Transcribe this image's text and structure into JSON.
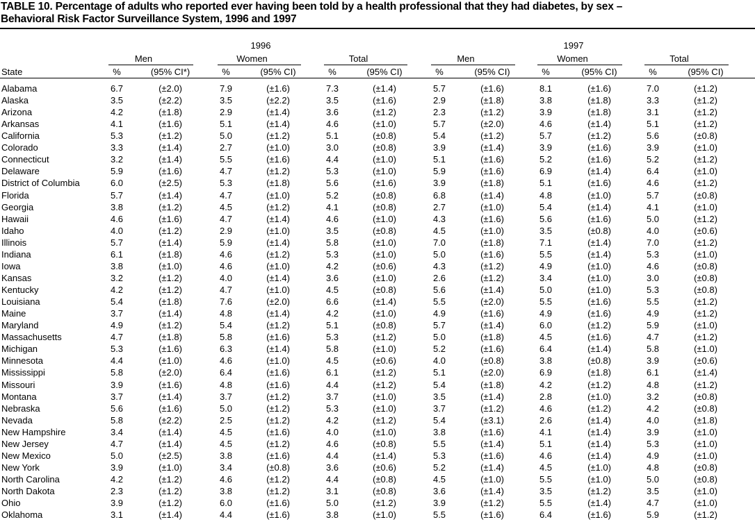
{
  "header": {
    "title": [
      "TABLE 10. Percentage of adults who reported ever having been told by a health professional that they had diabetes, by sex –",
      "Behavioral Risk Factor Surveillance System, 1996 and 1997"
    ]
  },
  "table": {
    "state_header": "State",
    "years": [
      {
        "label": "1996",
        "groups": [
          {
            "label": "Men",
            "cols": [
              "%",
              "(95% CI*)"
            ]
          },
          {
            "label": "Women",
            "cols": [
              "%",
              "(95% CI)"
            ]
          },
          {
            "label": "Total",
            "cols": [
              "%",
              "(95% CI)"
            ]
          }
        ]
      },
      {
        "label": "1997",
        "groups": [
          {
            "label": "Men",
            "cols": [
              "%",
              "(95% CI)"
            ]
          },
          {
            "label": "Women",
            "cols": [
              "%",
              "(95% CI)"
            ]
          },
          {
            "label": "Total",
            "cols": [
              "%",
              "(95% CI)"
            ]
          }
        ]
      }
    ],
    "rows": [
      [
        "Alabama",
        "6.7",
        "(±2.0)",
        "7.9",
        "(±1.6)",
        "7.3",
        "(±1.4)",
        "5.7",
        "(±1.6)",
        "8.1",
        "(±1.6)",
        "7.0",
        "(±1.2)"
      ],
      [
        "Alaska",
        "3.5",
        "(±2.2)",
        "3.5",
        "(±2.2)",
        "3.5",
        "(±1.6)",
        "2.9",
        "(±1.8)",
        "3.8",
        "(±1.8)",
        "3.3",
        "(±1.2)"
      ],
      [
        "Arizona",
        "4.2",
        "(±1.8)",
        "2.9",
        "(±1.4)",
        "3.6",
        "(±1.2)",
        "2.3",
        "(±1.2)",
        "3.9",
        "(±1.8)",
        "3.1",
        "(±1.2)"
      ],
      [
        "Arkansas",
        "4.1",
        "(±1.6)",
        "5.1",
        "(±1.4)",
        "4.6",
        "(±1.0)",
        "5.7",
        "(±2.0)",
        "4.6",
        "(±1.4)",
        "5.1",
        "(±1.2)"
      ],
      [
        "California",
        "5.3",
        "(±1.2)",
        "5.0",
        "(±1.2)",
        "5.1",
        "(±0.8)",
        "5.4",
        "(±1.2)",
        "5.7",
        "(±1.2)",
        "5.6",
        "(±0.8)"
      ],
      [
        "Colorado",
        "3.3",
        "(±1.4)",
        "2.7",
        "(±1.0)",
        "3.0",
        "(±0.8)",
        "3.9",
        "(±1.4)",
        "3.9",
        "(±1.6)",
        "3.9",
        "(±1.0)"
      ],
      [
        "Connecticut",
        "3.2",
        "(±1.4)",
        "5.5",
        "(±1.6)",
        "4.4",
        "(±1.0)",
        "5.1",
        "(±1.6)",
        "5.2",
        "(±1.6)",
        "5.2",
        "(±1.2)"
      ],
      [
        "Delaware",
        "5.9",
        "(±1.6)",
        "4.7",
        "(±1.2)",
        "5.3",
        "(±1.0)",
        "5.9",
        "(±1.6)",
        "6.9",
        "(±1.4)",
        "6.4",
        "(±1.0)"
      ],
      [
        "District of Columbia",
        "6.0",
        "(±2.5)",
        "5.3",
        "(±1.8)",
        "5.6",
        "(±1.6)",
        "3.9",
        "(±1.8)",
        "5.1",
        "(±1.6)",
        "4.6",
        "(±1.2)"
      ],
      [
        "Florida",
        "5.7",
        "(±1.4)",
        "4.7",
        "(±1.0)",
        "5.2",
        "(±0.8)",
        "6.8",
        "(±1.4)",
        "4.8",
        "(±1.0)",
        "5.7",
        "(±0.8)"
      ],
      [
        "Georgia",
        "3.8",
        "(±1.2)",
        "4.5",
        "(±1.2)",
        "4.1",
        "(±0.8)",
        "2.7",
        "(±1.0)",
        "5.4",
        "(±1.4)",
        "4.1",
        "(±1.0)"
      ],
      [
        "Hawaii",
        "4.6",
        "(±1.6)",
        "4.7",
        "(±1.4)",
        "4.6",
        "(±1.0)",
        "4.3",
        "(±1.6)",
        "5.6",
        "(±1.6)",
        "5.0",
        "(±1.2)"
      ],
      [
        "Idaho",
        "4.0",
        "(±1.2)",
        "2.9",
        "(±1.0)",
        "3.5",
        "(±0.8)",
        "4.5",
        "(±1.0)",
        "3.5",
        "(±0.8)",
        "4.0",
        "(±0.6)"
      ],
      [
        "Illinois",
        "5.7",
        "(±1.4)",
        "5.9",
        "(±1.4)",
        "5.8",
        "(±1.0)",
        "7.0",
        "(±1.8)",
        "7.1",
        "(±1.4)",
        "7.0",
        "(±1.2)"
      ],
      [
        "Indiana",
        "6.1",
        "(±1.8)",
        "4.6",
        "(±1.2)",
        "5.3",
        "(±1.0)",
        "5.0",
        "(±1.6)",
        "5.5",
        "(±1.4)",
        "5.3",
        "(±1.0)"
      ],
      [
        "Iowa",
        "3.8",
        "(±1.0)",
        "4.6",
        "(±1.0)",
        "4.2",
        "(±0.6)",
        "4.3",
        "(±1.2)",
        "4.9",
        "(±1.0)",
        "4.6",
        "(±0.8)"
      ],
      [
        "Kansas",
        "3.2",
        "(±1.2)",
        "4.0",
        "(±1.4)",
        "3.6",
        "(±1.0)",
        "2.6",
        "(±1.2)",
        "3.4",
        "(±1.0)",
        "3.0",
        "(±0.8)"
      ],
      [
        "Kentucky",
        "4.2",
        "(±1.2)",
        "4.7",
        "(±1.0)",
        "4.5",
        "(±0.8)",
        "5.6",
        "(±1.4)",
        "5.0",
        "(±1.0)",
        "5.3",
        "(±0.8)"
      ],
      [
        "Louisiana",
        "5.4",
        "(±1.8)",
        "7.6",
        "(±2.0)",
        "6.6",
        "(±1.4)",
        "5.5",
        "(±2.0)",
        "5.5",
        "(±1.6)",
        "5.5",
        "(±1.2)"
      ],
      [
        "Maine",
        "3.7",
        "(±1.4)",
        "4.8",
        "(±1.4)",
        "4.2",
        "(±1.0)",
        "4.9",
        "(±1.6)",
        "4.9",
        "(±1.6)",
        "4.9",
        "(±1.2)"
      ],
      [
        "Maryland",
        "4.9",
        "(±1.2)",
        "5.4",
        "(±1.2)",
        "5.1",
        "(±0.8)",
        "5.7",
        "(±1.4)",
        "6.0",
        "(±1.2)",
        "5.9",
        "(±1.0)"
      ],
      [
        "Massachusetts",
        "4.7",
        "(±1.8)",
        "5.8",
        "(±1.6)",
        "5.3",
        "(±1.2)",
        "5.0",
        "(±1.8)",
        "4.5",
        "(±1.6)",
        "4.7",
        "(±1.2)"
      ],
      [
        "Michigan",
        "5.3",
        "(±1.6)",
        "6.3",
        "(±1.4)",
        "5.8",
        "(±1.0)",
        "5.2",
        "(±1.6)",
        "6.4",
        "(±1.4)",
        "5.8",
        "(±1.0)"
      ],
      [
        "Minnesota",
        "4.4",
        "(±1.0)",
        "4.6",
        "(±1.0)",
        "4.5",
        "(±0.6)",
        "4.0",
        "(±0.8)",
        "3.8",
        "(±0.8)",
        "3.9",
        "(±0.6)"
      ],
      [
        "Mississippi",
        "5.8",
        "(±2.0)",
        "6.4",
        "(±1.6)",
        "6.1",
        "(±1.2)",
        "5.1",
        "(±2.0)",
        "6.9",
        "(±1.8)",
        "6.1",
        "(±1.4)"
      ],
      [
        "Missouri",
        "3.9",
        "(±1.6)",
        "4.8",
        "(±1.6)",
        "4.4",
        "(±1.2)",
        "5.4",
        "(±1.8)",
        "4.2",
        "(±1.2)",
        "4.8",
        "(±1.2)"
      ],
      [
        "Montana",
        "3.7",
        "(±1.4)",
        "3.7",
        "(±1.2)",
        "3.7",
        "(±1.0)",
        "3.5",
        "(±1.4)",
        "2.8",
        "(±1.0)",
        "3.2",
        "(±0.8)"
      ],
      [
        "Nebraska",
        "5.6",
        "(±1.6)",
        "5.0",
        "(±1.2)",
        "5.3",
        "(±1.0)",
        "3.7",
        "(±1.2)",
        "4.6",
        "(±1.2)",
        "4.2",
        "(±0.8)"
      ],
      [
        "Nevada",
        "5.8",
        "(±2.2)",
        "2.5",
        "(±1.2)",
        "4.2",
        "(±1.2)",
        "5.4",
        "(±3.1)",
        "2.6",
        "(±1.4)",
        "4.0",
        "(±1.8)"
      ],
      [
        "New Hampshire",
        "3.4",
        "(±1.4)",
        "4.5",
        "(±1.6)",
        "4.0",
        "(±1.0)",
        "3.8",
        "(±1.6)",
        "4.1",
        "(±1.4)",
        "3.9",
        "(±1.0)"
      ],
      [
        "New Jersey",
        "4.7",
        "(±1.4)",
        "4.5",
        "(±1.2)",
        "4.6",
        "(±0.8)",
        "5.5",
        "(±1.4)",
        "5.1",
        "(±1.4)",
        "5.3",
        "(±1.0)"
      ],
      [
        "New Mexico",
        "5.0",
        "(±2.5)",
        "3.8",
        "(±1.6)",
        "4.4",
        "(±1.4)",
        "5.3",
        "(±1.6)",
        "4.6",
        "(±1.4)",
        "4.9",
        "(±1.0)"
      ],
      [
        "New York",
        "3.9",
        "(±1.0)",
        "3.4",
        "(±0.8)",
        "3.6",
        "(±0.6)",
        "5.2",
        "(±1.4)",
        "4.5",
        "(±1.0)",
        "4.8",
        "(±0.8)"
      ],
      [
        "North Carolina",
        "4.2",
        "(±1.2)",
        "4.6",
        "(±1.2)",
        "4.4",
        "(±0.8)",
        "4.5",
        "(±1.0)",
        "5.5",
        "(±1.0)",
        "5.0",
        "(±0.8)"
      ],
      [
        "North Dakota",
        "2.3",
        "(±1.2)",
        "3.8",
        "(±1.2)",
        "3.1",
        "(±0.8)",
        "3.6",
        "(±1.4)",
        "3.5",
        "(±1.2)",
        "3.5",
        "(±1.0)"
      ],
      [
        "Ohio",
        "3.9",
        "(±1.2)",
        "6.0",
        "(±1.6)",
        "5.0",
        "(±1.2)",
        "3.9",
        "(±1.2)",
        "5.5",
        "(±1.4)",
        "4.7",
        "(±1.0)"
      ],
      [
        "Oklahoma",
        "3.1",
        "(±1.4)",
        "4.4",
        "(±1.6)",
        "3.8",
        "(±1.0)",
        "5.5",
        "(±1.6)",
        "6.4",
        "(±1.6)",
        "5.9",
        "(±1.2)"
      ]
    ]
  }
}
